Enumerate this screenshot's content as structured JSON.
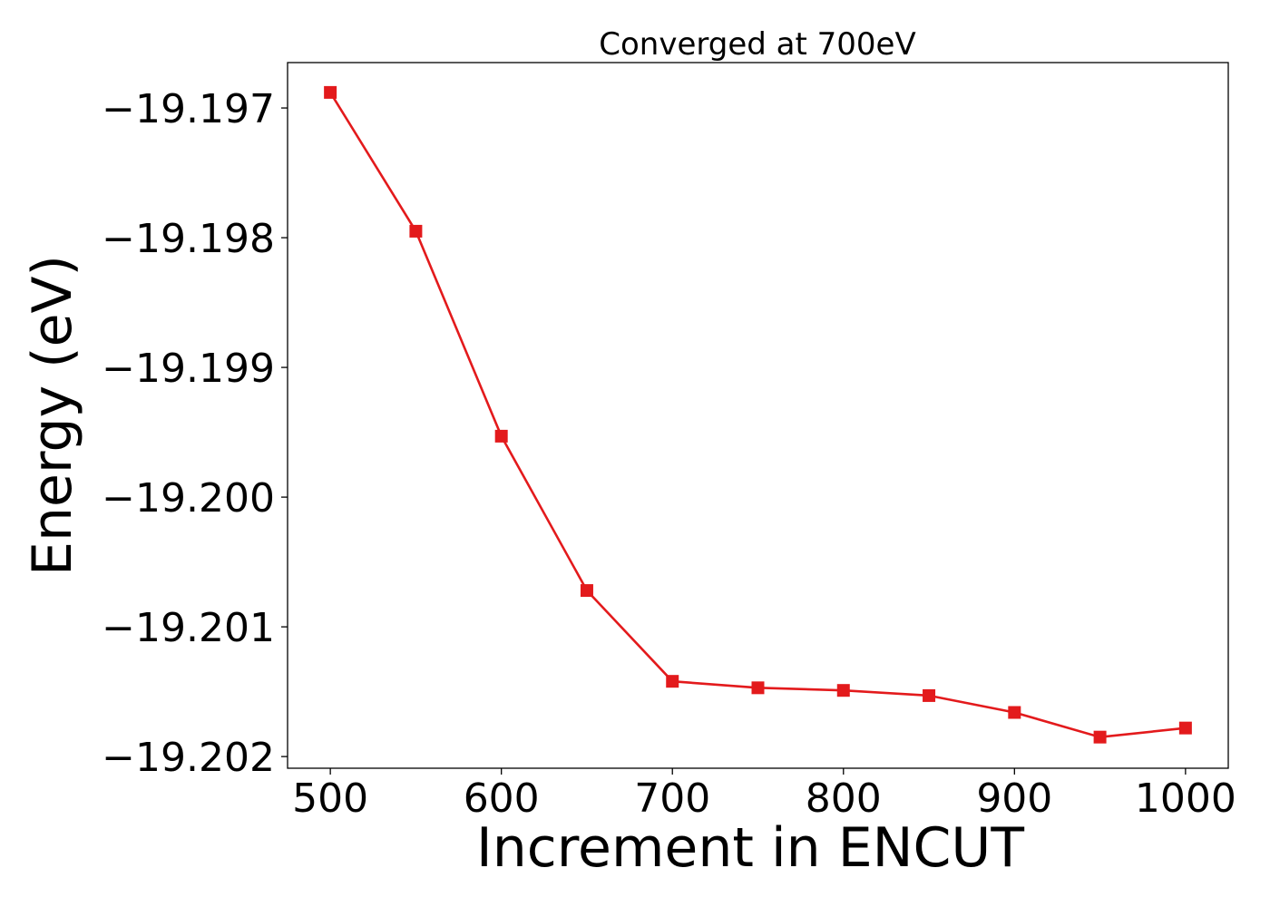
{
  "chart_data": {
    "type": "line",
    "title": "Converged at 700eV",
    "xlabel": "Increment in ENCUT",
    "ylabel": "Energy (eV)",
    "x": [
      500,
      550,
      600,
      650,
      700,
      750,
      800,
      850,
      900,
      950,
      1000
    ],
    "series": [
      {
        "values": [
          -19.19688,
          -19.19795,
          -19.19953,
          -19.20072,
          -19.20142,
          -19.20147,
          -19.20149,
          -19.20153,
          -19.20166,
          -19.20185,
          -19.20178
        ],
        "color": "#e31a1c",
        "marker": "square"
      }
    ],
    "xticks": [
      500,
      600,
      700,
      800,
      900,
      1000
    ],
    "xtick_labels": [
      "500",
      "600",
      "700",
      "800",
      "900",
      "1000"
    ],
    "yticks": [
      -19.197,
      -19.198,
      -19.199,
      -19.2,
      -19.201,
      -19.202
    ],
    "ytick_labels": [
      "−19.197",
      "−19.198",
      "−19.199",
      "−19.200",
      "−19.201",
      "−19.202"
    ],
    "xlim": [
      475,
      1025
    ],
    "ylim": [
      -19.20209,
      -19.19665
    ],
    "grid": false,
    "legend": false
  }
}
